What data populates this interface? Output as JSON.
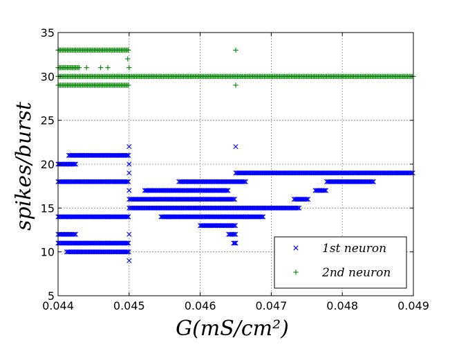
{
  "chart_data": {
    "type": "scatter",
    "xlabel": "G(mS/cm²)",
    "ylabel": "spikes/burst",
    "xlim": [
      0.044,
      0.049
    ],
    "ylim": [
      5,
      35
    ],
    "xticks": [
      "0.044",
      "0.045",
      "0.046",
      "0.047",
      "0.048",
      "0.049"
    ],
    "yticks": [
      "5",
      "10",
      "15",
      "20",
      "25",
      "30",
      "35"
    ],
    "grid": true,
    "legend_position": "bottom-right",
    "legend": [
      {
        "label": "1st neuron",
        "marker": "x",
        "color": "#0000ff"
      },
      {
        "label": "2nd neuron",
        "marker": "+",
        "color": "#008000"
      }
    ],
    "series": [
      {
        "name": "1st neuron",
        "marker": "x",
        "color": "#0000ff",
        "segments": [
          {
            "y": 20,
            "x": [
              0.044,
              0.04426
            ]
          },
          {
            "y": 21,
            "x": [
              0.04415,
              0.045
            ]
          },
          {
            "y": 18,
            "x": [
              0.044,
              0.045
            ]
          },
          {
            "y": 14,
            "x": [
              0.044,
              0.045
            ]
          },
          {
            "y": 12,
            "x": [
              0.044,
              0.04426
            ]
          },
          {
            "y": 11,
            "x": [
              0.044,
              0.045
            ]
          },
          {
            "y": 10,
            "x": [
              0.04412,
              0.045
            ]
          },
          {
            "y": 16,
            "x": [
              0.045,
              0.0465
            ]
          },
          {
            "y": 15,
            "x": [
              0.045,
              0.0474
            ]
          },
          {
            "y": 17,
            "x": [
              0.04522,
              0.0464
            ]
          },
          {
            "y": 14,
            "x": [
              0.04545,
              0.0469
            ]
          },
          {
            "y": 18,
            "x": [
              0.0457,
              0.04665
            ]
          },
          {
            "y": 13,
            "x": [
              0.046,
              0.0465
            ]
          },
          {
            "y": 19,
            "x": [
              0.0465,
              0.049
            ]
          },
          {
            "y": 16,
            "x": [
              0.04732,
              0.04752
            ]
          },
          {
            "y": 17,
            "x": [
              0.04762,
              0.04778
            ]
          },
          {
            "y": 18,
            "x": [
              0.04778,
              0.04845
            ]
          },
          {
            "y": 12,
            "x": [
              0.0464,
              0.0465
            ]
          },
          {
            "y": 11,
            "x": [
              0.04647,
              0.0465
            ]
          }
        ],
        "points": [
          [
            0.045,
            22
          ],
          [
            0.045,
            20
          ],
          [
            0.045,
            19
          ],
          [
            0.045,
            17
          ],
          [
            0.045,
            12
          ],
          [
            0.045,
            9
          ],
          [
            0.0465,
            22
          ],
          [
            0.0465,
            11
          ]
        ]
      },
      {
        "name": "2nd neuron",
        "marker": "+",
        "color": "#008000",
        "segments": [
          {
            "y": 33,
            "x": [
              0.044,
              0.045
            ]
          },
          {
            "y": 31,
            "x": [
              0.044,
              0.0443
            ]
          },
          {
            "y": 30,
            "x": [
              0.044,
              0.049
            ]
          },
          {
            "y": 29,
            "x": [
              0.044,
              0.045
            ]
          }
        ],
        "points": [
          [
            0.0444,
            31
          ],
          [
            0.0446,
            31
          ],
          [
            0.0447,
            31
          ],
          [
            0.04498,
            32
          ],
          [
            0.045,
            31
          ],
          [
            0.0465,
            33
          ],
          [
            0.0465,
            29
          ]
        ]
      }
    ]
  }
}
